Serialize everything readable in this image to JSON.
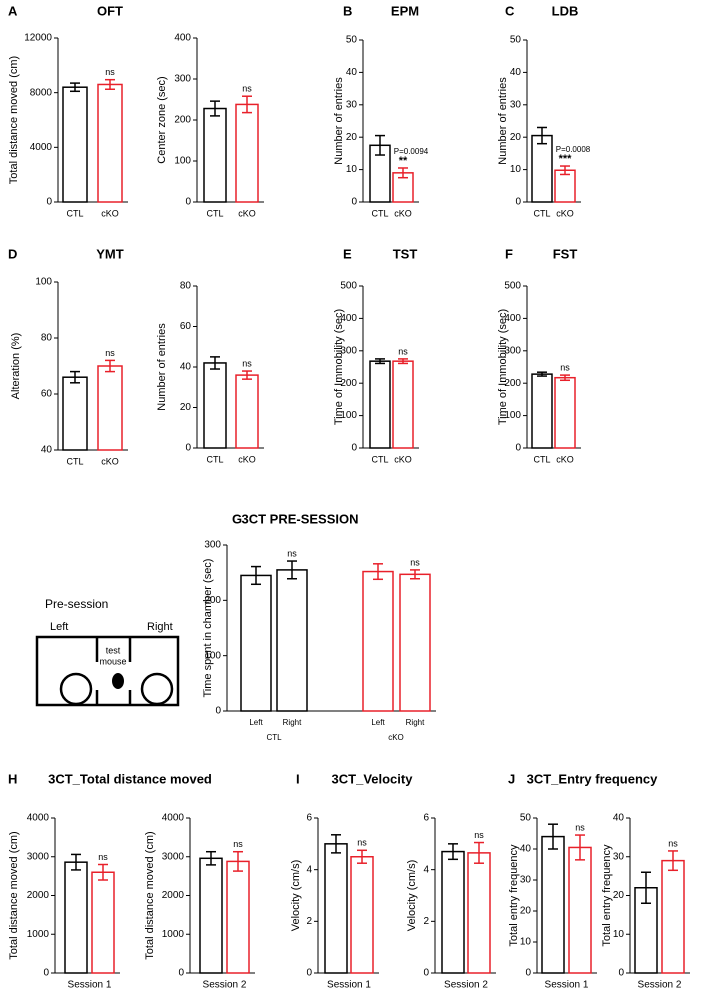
{
  "chart_data": [
    {
      "type": "bar",
      "panel": "A",
      "title": "OFT",
      "ylabel": "Total distance moved (cm)",
      "categories": [
        "CTL",
        "cKO"
      ],
      "values": [
        8400,
        8600
      ],
      "errors": [
        300,
        350
      ],
      "colors": [
        "#000000",
        "#e8202a"
      ],
      "annotations": [
        null,
        "ns"
      ],
      "ylim": [
        0,
        12000
      ],
      "yticks": [
        0,
        4000,
        8000,
        12000
      ]
    },
    {
      "type": "bar",
      "ylabel": "Center zone (sec)",
      "categories": [
        "CTL",
        "cKO"
      ],
      "values": [
        228,
        238
      ],
      "errors": [
        18,
        20
      ],
      "colors": [
        "#000000",
        "#e8202a"
      ],
      "annotations": [
        null,
        "ns"
      ],
      "ylim": [
        0,
        400
      ],
      "yticks": [
        0,
        100,
        200,
        300,
        400
      ]
    },
    {
      "type": "bar",
      "panel": "B",
      "title": "EPM",
      "ylabel": "Number of entries",
      "categories": [
        "CTL",
        "cKO"
      ],
      "values": [
        17.5,
        9
      ],
      "errors": [
        3,
        1.5
      ],
      "colors": [
        "#000000",
        "#e8202a"
      ],
      "annotations": [
        null,
        "**"
      ],
      "p_values": [
        null,
        "P=0.0094"
      ],
      "ylim": [
        0,
        50
      ],
      "yticks": [
        0,
        10,
        20,
        30,
        40,
        50
      ]
    },
    {
      "type": "bar",
      "panel": "C",
      "title": "LDB",
      "ylabel": "Number of entries",
      "categories": [
        "CTL",
        "cKO"
      ],
      "values": [
        20.5,
        9.8
      ],
      "errors": [
        2.5,
        1.3
      ],
      "colors": [
        "#000000",
        "#e8202a"
      ],
      "annotations": [
        null,
        "***"
      ],
      "p_values": [
        null,
        "P=0.0008"
      ],
      "ylim": [
        0,
        50
      ],
      "yticks": [
        0,
        10,
        20,
        30,
        40,
        50
      ]
    },
    {
      "type": "bar",
      "panel": "D",
      "title": "YMT",
      "ylabel": "Alteration (%)",
      "categories": [
        "CTL",
        "cKO"
      ],
      "values": [
        66,
        70
      ],
      "errors": [
        2,
        2
      ],
      "colors": [
        "#000000",
        "#e8202a"
      ],
      "annotations": [
        null,
        "ns"
      ],
      "ylim": [
        40,
        100
      ],
      "yticks": [
        40,
        60,
        80,
        100
      ]
    },
    {
      "type": "bar",
      "ylabel": "Number of entries",
      "categories": [
        "CTL",
        "cKO"
      ],
      "values": [
        42,
        36
      ],
      "errors": [
        3,
        2
      ],
      "colors": [
        "#000000",
        "#e8202a"
      ],
      "annotations": [
        null,
        "ns"
      ],
      "ylim": [
        0,
        80
      ],
      "yticks": [
        0,
        20,
        40,
        60,
        80
      ]
    },
    {
      "type": "bar",
      "panel": "E",
      "title": "TST",
      "ylabel": "Time of Immobility (sec)",
      "categories": [
        "CTL",
        "cKO"
      ],
      "values": [
        268,
        268
      ],
      "errors": [
        7,
        7
      ],
      "colors": [
        "#000000",
        "#e8202a"
      ],
      "annotations": [
        null,
        "ns"
      ],
      "ylim": [
        0,
        500
      ],
      "yticks": [
        0,
        100,
        200,
        300,
        400,
        500
      ]
    },
    {
      "type": "bar",
      "panel": "F",
      "title": "FST",
      "ylabel": "Time of Immobility (sec)",
      "categories": [
        "CTL",
        "cKO"
      ],
      "values": [
        228,
        217
      ],
      "errors": [
        6,
        8
      ],
      "colors": [
        "#000000",
        "#e8202a"
      ],
      "annotations": [
        null,
        "ns"
      ],
      "ylim": [
        0,
        500
      ],
      "yticks": [
        0,
        100,
        200,
        300,
        400,
        500
      ]
    },
    {
      "type": "bar",
      "panel": "G",
      "title": "3CT PRE-SESSION",
      "ylabel": "Time spent in chamber (sec)",
      "categories": [
        "Left",
        "Right",
        "Left",
        "Right"
      ],
      "groups": [
        "CTL",
        "cKO"
      ],
      "values": [
        245,
        255,
        252,
        247
      ],
      "errors": [
        16,
        16,
        14,
        8
      ],
      "colors": [
        "#000000",
        "#000000",
        "#e8202a",
        "#e8202a"
      ],
      "annotations": [
        null,
        "ns",
        null,
        "ns"
      ],
      "ylim": [
        0,
        300
      ],
      "yticks": [
        0,
        100,
        200,
        300
      ]
    },
    {
      "type": "bar",
      "panel": "H",
      "title": "3CT_Total distance moved",
      "ylabel": "Total distance moved (cm)",
      "xlabel": "Session 1",
      "values": [
        2860,
        2600
      ],
      "errors": [
        200,
        200
      ],
      "colors": [
        "#000000",
        "#e8202a"
      ],
      "annotations": [
        null,
        "ns"
      ],
      "ylim": [
        0,
        4000
      ],
      "yticks": [
        0,
        1000,
        2000,
        3000,
        4000
      ]
    },
    {
      "type": "bar",
      "ylabel": "Total distance moved (cm)",
      "xlabel": "Session 2",
      "values": [
        2960,
        2880
      ],
      "errors": [
        170,
        250
      ],
      "colors": [
        "#000000",
        "#e8202a"
      ],
      "annotations": [
        null,
        "ns"
      ],
      "ylim": [
        0,
        4000
      ],
      "yticks": [
        0,
        1000,
        2000,
        3000,
        4000
      ]
    },
    {
      "type": "bar",
      "panel": "I",
      "title": "3CT_Velocity",
      "ylabel": "Velocity (cm/s)",
      "xlabel": "Session 1",
      "values": [
        5.0,
        4.5
      ],
      "errors": [
        0.35,
        0.25
      ],
      "colors": [
        "#000000",
        "#e8202a"
      ],
      "annotations": [
        null,
        "ns"
      ],
      "ylim": [
        0,
        6
      ],
      "yticks": [
        0,
        2,
        4,
        6
      ]
    },
    {
      "type": "bar",
      "ylabel": "Velocity (cm/s)",
      "xlabel": "Session 2",
      "values": [
        4.7,
        4.65
      ],
      "errors": [
        0.3,
        0.4
      ],
      "colors": [
        "#000000",
        "#e8202a"
      ],
      "annotations": [
        null,
        "ns"
      ],
      "ylim": [
        0,
        6
      ],
      "yticks": [
        0,
        2,
        4,
        6
      ]
    },
    {
      "type": "bar",
      "panel": "J",
      "title": "3CT_Entry frequency",
      "ylabel": "Total entry frequency",
      "xlabel": "Session 1",
      "values": [
        44,
        40.5
      ],
      "errors": [
        4,
        4
      ],
      "colors": [
        "#000000",
        "#e8202a"
      ],
      "annotations": [
        null,
        "ns"
      ],
      "ylim": [
        0,
        50
      ],
      "yticks": [
        0,
        10,
        20,
        30,
        40,
        50
      ]
    },
    {
      "type": "bar",
      "ylabel": "Total entry frequency",
      "xlabel": "Session 2",
      "values": [
        22,
        29
      ],
      "errors": [
        4,
        2.5
      ],
      "colors": [
        "#000000",
        "#e8202a"
      ],
      "annotations": [
        null,
        "ns"
      ],
      "ylim": [
        0,
        40
      ],
      "yticks": [
        0,
        10,
        20,
        30,
        40
      ]
    }
  ],
  "diagram": {
    "label": "Pre-session",
    "left": "Left",
    "right": "Right",
    "mouse": [
      "test",
      "mouse"
    ]
  }
}
